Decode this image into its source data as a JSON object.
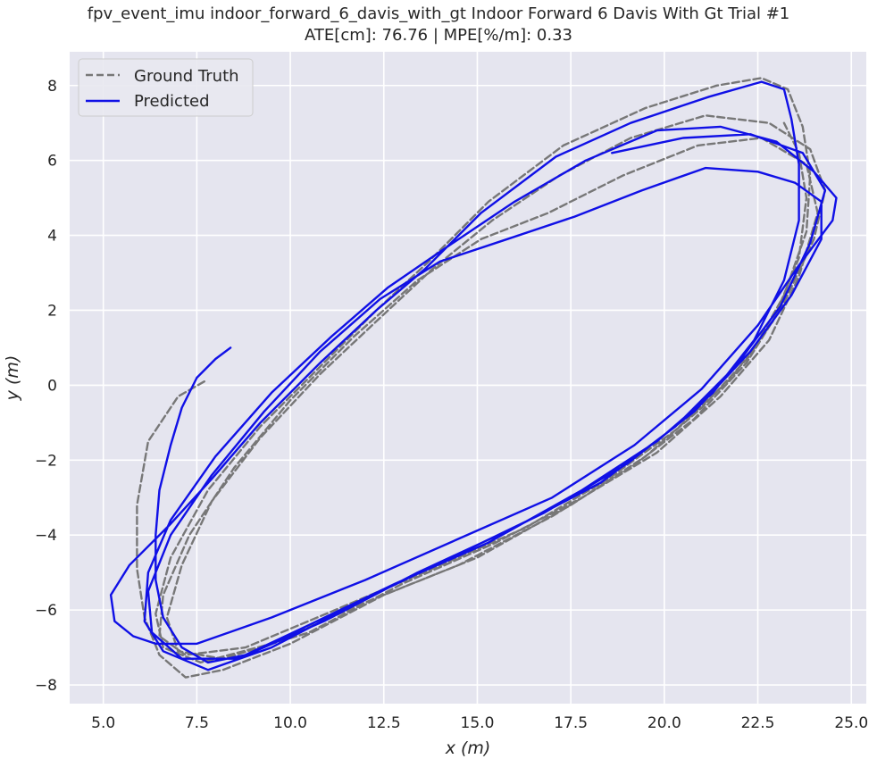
{
  "chart_data": {
    "type": "line",
    "title": "fpv_event_imu indoor_forward_6_davis_with_gt Indoor Forward 6 Davis With Gt Trial #1",
    "subtitle": "ATE[cm]: 76.76 | MPE[%/m]: 0.33",
    "xlabel": "x (m)",
    "ylabel": "y (m)",
    "xlim": [
      4.1,
      25.4
    ],
    "ylim": [
      -8.5,
      8.9
    ],
    "xticks": [
      5.0,
      7.5,
      10.0,
      12.5,
      15.0,
      17.5,
      20.0,
      22.5,
      25.0
    ],
    "xtick_labels": [
      "5.0",
      "7.5",
      "10.0",
      "12.5",
      "15.0",
      "17.5",
      "20.0",
      "22.5",
      "25.0"
    ],
    "yticks": [
      -8,
      -6,
      -4,
      -2,
      0,
      2,
      4,
      6,
      8
    ],
    "ytick_labels": [
      "−8",
      "−6",
      "−4",
      "−2",
      "0",
      "2",
      "4",
      "6",
      "8"
    ],
    "grid": true,
    "background": "#e5e5ef",
    "legend_position": "top-left",
    "series": [
      {
        "name": "Ground Truth",
        "color": "#777777",
        "style": "dashed",
        "points": [
          [
            7.7,
            0.1
          ],
          [
            7.0,
            -0.3
          ],
          [
            6.2,
            -1.5
          ],
          [
            5.9,
            -3.2
          ],
          [
            5.9,
            -4.9
          ],
          [
            6.1,
            -6.2
          ],
          [
            6.5,
            -7.2
          ],
          [
            7.2,
            -7.8
          ],
          [
            8.2,
            -7.6
          ],
          [
            10.0,
            -6.9
          ],
          [
            12.5,
            -5.6
          ],
          [
            15.0,
            -4.6
          ],
          [
            17.5,
            -3.2
          ],
          [
            19.5,
            -1.9
          ],
          [
            21.0,
            -0.6
          ],
          [
            22.3,
            0.8
          ],
          [
            23.2,
            2.4
          ],
          [
            23.8,
            4.1
          ],
          [
            23.9,
            5.6
          ],
          [
            23.7,
            6.9
          ],
          [
            23.3,
            7.9
          ],
          [
            22.6,
            8.2
          ],
          [
            21.4,
            8.0
          ],
          [
            19.5,
            7.4
          ],
          [
            17.3,
            6.4
          ],
          [
            15.3,
            4.9
          ],
          [
            13.7,
            3.3
          ],
          [
            12.3,
            2.0
          ],
          [
            10.7,
            0.4
          ],
          [
            9.2,
            -1.1
          ],
          [
            7.8,
            -2.8
          ],
          [
            6.8,
            -4.6
          ],
          [
            6.4,
            -6.1
          ],
          [
            6.6,
            -7.0
          ],
          [
            7.6,
            -7.4
          ],
          [
            9.5,
            -6.9
          ],
          [
            12.0,
            -5.8
          ],
          [
            14.5,
            -4.8
          ],
          [
            17.0,
            -3.5
          ],
          [
            19.1,
            -2.2
          ],
          [
            20.8,
            -0.9
          ],
          [
            22.2,
            0.6
          ],
          [
            23.2,
            2.2
          ],
          [
            24.0,
            3.9
          ],
          [
            24.3,
            5.2
          ],
          [
            23.9,
            6.3
          ],
          [
            22.8,
            7.0
          ],
          [
            21.1,
            7.2
          ],
          [
            19.1,
            6.6
          ],
          [
            17.2,
            5.6
          ],
          [
            15.4,
            4.4
          ],
          [
            13.8,
            3.1
          ],
          [
            12.4,
            1.8
          ],
          [
            10.8,
            0.3
          ],
          [
            9.2,
            -1.4
          ],
          [
            7.9,
            -3.1
          ],
          [
            7.1,
            -4.8
          ],
          [
            6.7,
            -6.2
          ],
          [
            7.0,
            -7.1
          ],
          [
            8.2,
            -7.3
          ],
          [
            10.5,
            -6.6
          ],
          [
            13.0,
            -5.3
          ],
          [
            15.5,
            -4.2
          ],
          [
            17.8,
            -3.0
          ],
          [
            19.8,
            -1.8
          ],
          [
            21.5,
            -0.3
          ],
          [
            22.8,
            1.2
          ],
          [
            23.6,
            2.9
          ],
          [
            24.1,
            4.6
          ],
          [
            23.8,
            5.9
          ],
          [
            22.6,
            6.6
          ],
          [
            20.9,
            6.4
          ],
          [
            18.9,
            5.6
          ],
          [
            16.9,
            4.6
          ],
          [
            15.1,
            3.9
          ],
          [
            13.4,
            2.8
          ],
          [
            11.7,
            1.3
          ],
          [
            10.0,
            -0.4
          ],
          [
            8.5,
            -2.2
          ],
          [
            7.3,
            -4.0
          ],
          [
            6.6,
            -5.6
          ],
          [
            6.5,
            -6.7
          ],
          [
            7.2,
            -7.2
          ],
          [
            8.8,
            -7.0
          ],
          [
            11.2,
            -6.0
          ],
          [
            13.8,
            -4.9
          ],
          [
            16.3,
            -3.8
          ],
          [
            18.5,
            -2.5
          ],
          [
            20.3,
            -1.2
          ],
          [
            21.8,
            0.2
          ],
          [
            22.9,
            1.7
          ],
          [
            23.6,
            3.4
          ],
          [
            23.8,
            5.0
          ],
          [
            23.6,
            6.2
          ],
          [
            23.2,
            7.0
          ]
        ]
      },
      {
        "name": "Predicted",
        "color": "#1010e6",
        "style": "solid",
        "points": [
          [
            8.4,
            1.0
          ],
          [
            8.0,
            0.7
          ],
          [
            7.5,
            0.2
          ],
          [
            7.1,
            -0.6
          ],
          [
            6.8,
            -1.6
          ],
          [
            6.5,
            -2.8
          ],
          [
            6.4,
            -4.0
          ],
          [
            6.4,
            -5.2
          ],
          [
            6.6,
            -6.2
          ],
          [
            7.1,
            -7.0
          ],
          [
            7.8,
            -7.4
          ],
          [
            8.8,
            -7.2
          ],
          [
            10.5,
            -6.4
          ],
          [
            12.8,
            -5.3
          ],
          [
            15.3,
            -4.2
          ],
          [
            17.8,
            -2.8
          ],
          [
            19.8,
            -1.5
          ],
          [
            21.3,
            -0.2
          ],
          [
            22.4,
            1.2
          ],
          [
            23.2,
            2.8
          ],
          [
            23.6,
            4.4
          ],
          [
            23.6,
            5.9
          ],
          [
            23.4,
            7.1
          ],
          [
            23.2,
            7.9
          ],
          [
            22.6,
            8.1
          ],
          [
            21.2,
            7.7
          ],
          [
            19.1,
            7.0
          ],
          [
            17.1,
            6.1
          ],
          [
            15.1,
            4.6
          ],
          [
            13.6,
            3.1
          ],
          [
            12.3,
            2.0
          ],
          [
            10.8,
            0.6
          ],
          [
            9.2,
            -1.0
          ],
          [
            7.9,
            -2.5
          ],
          [
            6.8,
            -3.7
          ],
          [
            5.7,
            -4.8
          ],
          [
            5.2,
            -5.6
          ],
          [
            5.3,
            -6.3
          ],
          [
            5.8,
            -6.7
          ],
          [
            6.4,
            -6.9
          ],
          [
            7.5,
            -6.9
          ],
          [
            9.5,
            -6.2
          ],
          [
            12.0,
            -5.2
          ],
          [
            14.5,
            -4.1
          ],
          [
            17.0,
            -3.0
          ],
          [
            19.2,
            -1.6
          ],
          [
            21.0,
            -0.1
          ],
          [
            22.5,
            1.6
          ],
          [
            23.6,
            3.2
          ],
          [
            24.5,
            4.4
          ],
          [
            24.6,
            5.0
          ],
          [
            24.0,
            5.7
          ],
          [
            23.0,
            6.5
          ],
          [
            21.5,
            6.9
          ],
          [
            19.8,
            6.8
          ],
          [
            17.9,
            6.0
          ],
          [
            16.0,
            4.9
          ],
          [
            14.2,
            3.7
          ],
          [
            12.6,
            2.6
          ],
          [
            11.1,
            1.3
          ],
          [
            9.5,
            -0.2
          ],
          [
            8.0,
            -1.9
          ],
          [
            6.8,
            -3.6
          ],
          [
            6.2,
            -5.0
          ],
          [
            6.1,
            -6.3
          ],
          [
            6.6,
            -7.1
          ],
          [
            7.8,
            -7.6
          ],
          [
            9.5,
            -7.0
          ],
          [
            11.8,
            -5.8
          ],
          [
            14.3,
            -4.6
          ],
          [
            16.8,
            -3.4
          ],
          [
            19.0,
            -2.1
          ],
          [
            20.8,
            -0.7
          ],
          [
            22.3,
            0.9
          ],
          [
            23.4,
            2.4
          ],
          [
            24.2,
            3.9
          ],
          [
            24.2,
            4.9
          ],
          [
            23.5,
            5.4
          ],
          [
            22.5,
            5.7
          ],
          [
            21.1,
            5.8
          ],
          [
            19.4,
            5.2
          ],
          [
            17.6,
            4.5
          ],
          [
            15.8,
            3.9
          ],
          [
            14.0,
            3.3
          ],
          [
            12.4,
            2.3
          ],
          [
            10.8,
            0.9
          ],
          [
            9.3,
            -0.7
          ],
          [
            7.9,
            -2.4
          ],
          [
            6.8,
            -4.0
          ],
          [
            6.2,
            -5.5
          ],
          [
            6.3,
            -6.6
          ],
          [
            7.1,
            -7.3
          ],
          [
            8.6,
            -7.3
          ],
          [
            10.9,
            -6.3
          ],
          [
            13.4,
            -5.0
          ],
          [
            16.0,
            -3.8
          ],
          [
            18.3,
            -2.6
          ],
          [
            20.3,
            -1.1
          ],
          [
            21.9,
            0.5
          ],
          [
            23.1,
            2.1
          ],
          [
            23.9,
            3.8
          ],
          [
            24.3,
            5.2
          ],
          [
            23.7,
            6.2
          ],
          [
            22.3,
            6.7
          ],
          [
            20.5,
            6.6
          ],
          [
            18.6,
            6.2
          ]
        ]
      }
    ]
  }
}
